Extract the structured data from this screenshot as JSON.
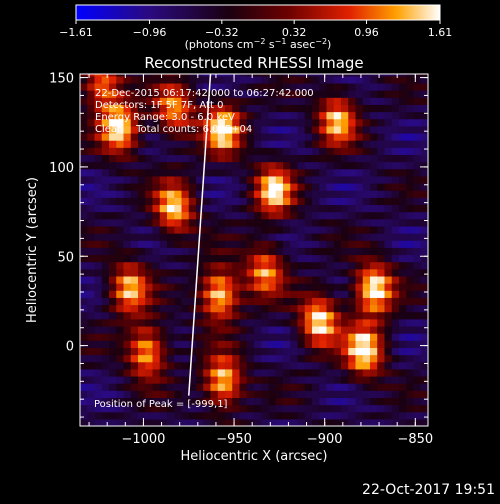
{
  "chart_data": {
    "type": "heatmap",
    "title": "Reconstructed RHESSI Image",
    "xlabel": "Heliocentric X (arcsec)",
    "ylabel": "Heliocentric Y (arcsec)",
    "xlim": [
      -1035,
      -843
    ],
    "ylim": [
      -45,
      152
    ],
    "x_ticks": [
      -1000,
      -950,
      -900,
      -850
    ],
    "x_tick_labels": [
      "−1000",
      "−950",
      "−900",
      "−850"
    ],
    "y_ticks": [
      0,
      50,
      100,
      150
    ],
    "y_tick_labels": [
      "0",
      "50",
      "100",
      "150"
    ],
    "colorbar": {
      "min": -1.61,
      "max": 1.61,
      "ticks": [
        -1.61,
        -0.96,
        -0.32,
        0.32,
        0.96,
        1.61
      ],
      "tick_labels": [
        "−1.61",
        "−0.96",
        "−0.32",
        "0.32",
        "0.96",
        "1.61"
      ],
      "units_text": "(photons cm",
      "units_exp1": "−2",
      "units_mid": " s",
      "units_exp2": "−1",
      "units_end": " asec",
      "units_exp3": "−2",
      "units_close": ")"
    },
    "info_lines": [
      "22-Dec-2015 06:17:42.000 to 06:27:42.000",
      "Detectors: 1F 5F 7F, Att 0",
      "Energy Range: 3.0 - 6.0 keV",
      "Clean    Total counts: 6.09E+04"
    ],
    "peak_label": "Position of Peak = [-999,1]",
    "peak_position": [
      -999,
      1
    ],
    "limb_line": [
      [
        -975,
        -28
      ],
      [
        -963,
        152
      ]
    ],
    "bright_sources": [
      {
        "x": -960,
        "y": 27,
        "value": 1.55
      },
      {
        "x": -958,
        "y": -22,
        "value": 1.45
      },
      {
        "x": -958,
        "y": 120,
        "value": 1.4
      },
      {
        "x": -930,
        "y": 85,
        "value": 1.3
      },
      {
        "x": -905,
        "y": 12,
        "value": 1.45
      },
      {
        "x": -875,
        "y": 30,
        "value": 1.6
      },
      {
        "x": -880,
        "y": -5,
        "value": 1.5
      },
      {
        "x": -895,
        "y": 125,
        "value": 1.2
      },
      {
        "x": -1015,
        "y": 120,
        "value": 1.4
      },
      {
        "x": -985,
        "y": 75,
        "value": 1.3
      },
      {
        "x": -1010,
        "y": 30,
        "value": 1.2
      },
      {
        "x": -1000,
        "y": -5,
        "value": 1.3
      },
      {
        "x": -935,
        "y": 40,
        "value": 1.0
      },
      {
        "x": -1025,
        "y": 145,
        "value": 1.1
      },
      {
        "x": -985,
        "y": 130,
        "value": 1.0
      }
    ]
  },
  "timestamp": "22-Oct-2017 19:51",
  "colors": {
    "background": "#000000",
    "foreground": "#ffffff",
    "limb_line": "#ffffff"
  }
}
